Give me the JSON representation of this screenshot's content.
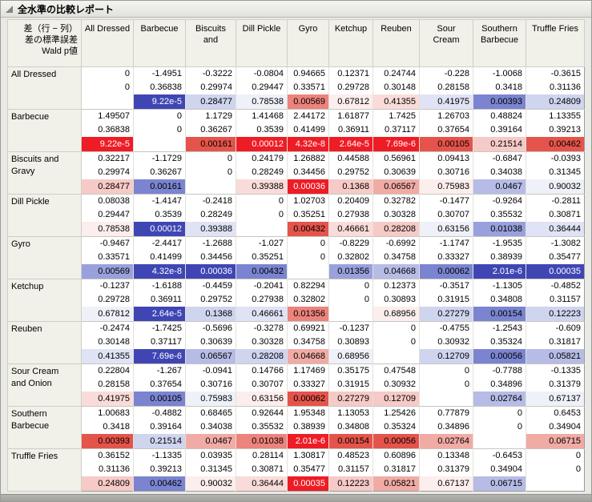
{
  "title_bar": {
    "title": "全水準の比較レポート"
  },
  "table": {
    "corner_header": [
      "差（行 − 列）",
      "差の標準誤差",
      "Wald p値"
    ],
    "columns": [
      "All Dressed",
      "Barbecue",
      "Biscuits\nand",
      "Dill Pickle",
      "Gyro",
      "Ketchup",
      "Reuben",
      "Sour\nCream",
      "Southern\nBarbecue",
      "Truffle Fries"
    ],
    "rows": [
      {
        "label": "All Dressed",
        "diff": [
          "0",
          "-1.4951",
          "-0.3222",
          "-0.0804",
          "0.94665",
          "0.12371",
          "0.24744",
          "-0.228",
          "-1.0068",
          "-0.3615"
        ],
        "se": [
          "0",
          "0.36838",
          "0.29974",
          "0.29447",
          "0.33571",
          "0.29728",
          "0.30148",
          "0.28158",
          "0.3418",
          "0.31136"
        ],
        "p": [
          "",
          "9.22e-5",
          "0.28477",
          "0.78538",
          "0.00569",
          "0.67812",
          "0.41355",
          "0.41975",
          "0.00393",
          "0.24809"
        ]
      },
      {
        "label": "Barbecue",
        "diff": [
          "1.49507",
          "0",
          "1.1729",
          "1.41468",
          "2.44172",
          "1.61877",
          "1.7425",
          "1.26703",
          "0.48824",
          "1.13355"
        ],
        "se": [
          "0.36838",
          "0",
          "0.36267",
          "0.3539",
          "0.41499",
          "0.36911",
          "0.37117",
          "0.37654",
          "0.39164",
          "0.39213"
        ],
        "p": [
          "9.22e-5",
          "",
          "0.00161",
          "0.00012",
          "4.32e-8",
          "2.64e-5",
          "7.69e-6",
          "0.00105",
          "0.21514",
          "0.00462"
        ]
      },
      {
        "label": "Biscuits and\nGravy",
        "diff": [
          "0.32217",
          "-1.1729",
          "0",
          "0.24179",
          "1.26882",
          "0.44588",
          "0.56961",
          "0.09413",
          "-0.6847",
          "-0.0393"
        ],
        "se": [
          "0.29974",
          "0.36267",
          "0",
          "0.28249",
          "0.34456",
          "0.29752",
          "0.30639",
          "0.30716",
          "0.34038",
          "0.31345"
        ],
        "p": [
          "0.28477",
          "0.00161",
          "",
          "0.39388",
          "0.00036",
          "0.1368",
          "0.06567",
          "0.75983",
          "0.0467",
          "0.90032"
        ]
      },
      {
        "label": "Dill Pickle",
        "diff": [
          "0.08038",
          "-1.4147",
          "-0.2418",
          "0",
          "1.02703",
          "0.20409",
          "0.32782",
          "-0.1477",
          "-0.9264",
          "-0.2811"
        ],
        "se": [
          "0.29447",
          "0.3539",
          "0.28249",
          "0",
          "0.35251",
          "0.27938",
          "0.30328",
          "0.30707",
          "0.35532",
          "0.30871"
        ],
        "p": [
          "0.78538",
          "0.00012",
          "0.39388",
          "",
          "0.00432",
          "0.46661",
          "0.28208",
          "0.63156",
          "0.01038",
          "0.36444"
        ]
      },
      {
        "label": "Gyro",
        "diff": [
          "-0.9467",
          "-2.4417",
          "-1.2688",
          "-1.027",
          "0",
          "-0.8229",
          "-0.6992",
          "-1.1747",
          "-1.9535",
          "-1.3082"
        ],
        "se": [
          "0.33571",
          "0.41499",
          "0.34456",
          "0.35251",
          "0",
          "0.32802",
          "0.34758",
          "0.33327",
          "0.38939",
          "0.35477"
        ],
        "p": [
          "0.00569",
          "4.32e-8",
          "0.00036",
          "0.00432",
          "",
          "0.01356",
          "0.04668",
          "0.00062",
          "2.01e-6",
          "0.00035"
        ]
      },
      {
        "label": "Ketchup",
        "diff": [
          "-0.1237",
          "-1.6188",
          "-0.4459",
          "-0.2041",
          "0.82294",
          "0",
          "0.12373",
          "-0.3517",
          "-1.1305",
          "-0.4852"
        ],
        "se": [
          "0.29728",
          "0.36911",
          "0.29752",
          "0.27938",
          "0.32802",
          "0",
          "0.30893",
          "0.31915",
          "0.34808",
          "0.31157"
        ],
        "p": [
          "0.67812",
          "2.64e-5",
          "0.1368",
          "0.46661",
          "0.01356",
          "",
          "0.68956",
          "0.27279",
          "0.00154",
          "0.12223"
        ]
      },
      {
        "label": "Reuben",
        "diff": [
          "-0.2474",
          "-1.7425",
          "-0.5696",
          "-0.3278",
          "0.69921",
          "-0.1237",
          "0",
          "-0.4755",
          "-1.2543",
          "-0.609"
        ],
        "se": [
          "0.30148",
          "0.37117",
          "0.30639",
          "0.30328",
          "0.34758",
          "0.30893",
          "0",
          "0.30932",
          "0.35324",
          "0.31817"
        ],
        "p": [
          "0.41355",
          "7.69e-6",
          "0.06567",
          "0.28208",
          "0.04668",
          "0.68956",
          "",
          "0.12709",
          "0.00056",
          "0.05821"
        ]
      },
      {
        "label": "Sour Cream\nand Onion",
        "diff": [
          "0.22804",
          "-1.267",
          "-0.0941",
          "0.14766",
          "1.17469",
          "0.35175",
          "0.47548",
          "0",
          "-0.7788",
          "-0.1335"
        ],
        "se": [
          "0.28158",
          "0.37654",
          "0.30716",
          "0.30707",
          "0.33327",
          "0.31915",
          "0.30932",
          "0",
          "0.34896",
          "0.31379"
        ],
        "p": [
          "0.41975",
          "0.00105",
          "0.75983",
          "0.63156",
          "0.00062",
          "0.27279",
          "0.12709",
          "",
          "0.02764",
          "0.67137"
        ]
      },
      {
        "label": "Southern\nBarbecue",
        "diff": [
          "1.00683",
          "-0.4882",
          "0.68465",
          "0.92644",
          "1.95348",
          "1.13053",
          "1.25426",
          "0.77879",
          "0",
          "0.6453"
        ],
        "se": [
          "0.3418",
          "0.39164",
          "0.34038",
          "0.35532",
          "0.38939",
          "0.34808",
          "0.35324",
          "0.34896",
          "0",
          "0.34904"
        ],
        "p": [
          "0.00393",
          "0.21514",
          "0.0467",
          "0.01038",
          "2.01e-6",
          "0.00154",
          "0.00056",
          "0.02764",
          "",
          "0.06715"
        ]
      },
      {
        "label": "Truffle Fries",
        "diff": [
          "0.36152",
          "-1.1335",
          "0.03935",
          "0.28114",
          "1.30817",
          "0.48523",
          "0.60896",
          "0.13348",
          "-0.6453",
          "0"
        ],
        "se": [
          "0.31136",
          "0.39213",
          "0.31345",
          "0.30871",
          "0.35477",
          "0.31157",
          "0.31817",
          "0.31379",
          "0.34904",
          "0"
        ],
        "p": [
          "0.24809",
          "0.00462",
          "0.90032",
          "0.36444",
          "0.00035",
          "0.12223",
          "0.05821",
          "0.67137",
          "0.06715",
          ""
        ]
      }
    ]
  },
  "colors": {
    "positive_scale": {
      "5": "#ee1c25",
      "4": "#e4544b",
      "3": "#ec837c",
      "2": "#f1aba5",
      "1": "#f6cac6",
      "0": "#f9dcd9",
      "n": "#fceeec"
    },
    "negative_scale": {
      "5": "#3f46b4",
      "4": "#7a84d0",
      "3": "#99a1dc",
      "2": "#b6bce6",
      "1": "#cfd4ef",
      "0": "#e0e3f5",
      "n": "#eff1f9"
    },
    "strong_text": "#ffffff"
  }
}
